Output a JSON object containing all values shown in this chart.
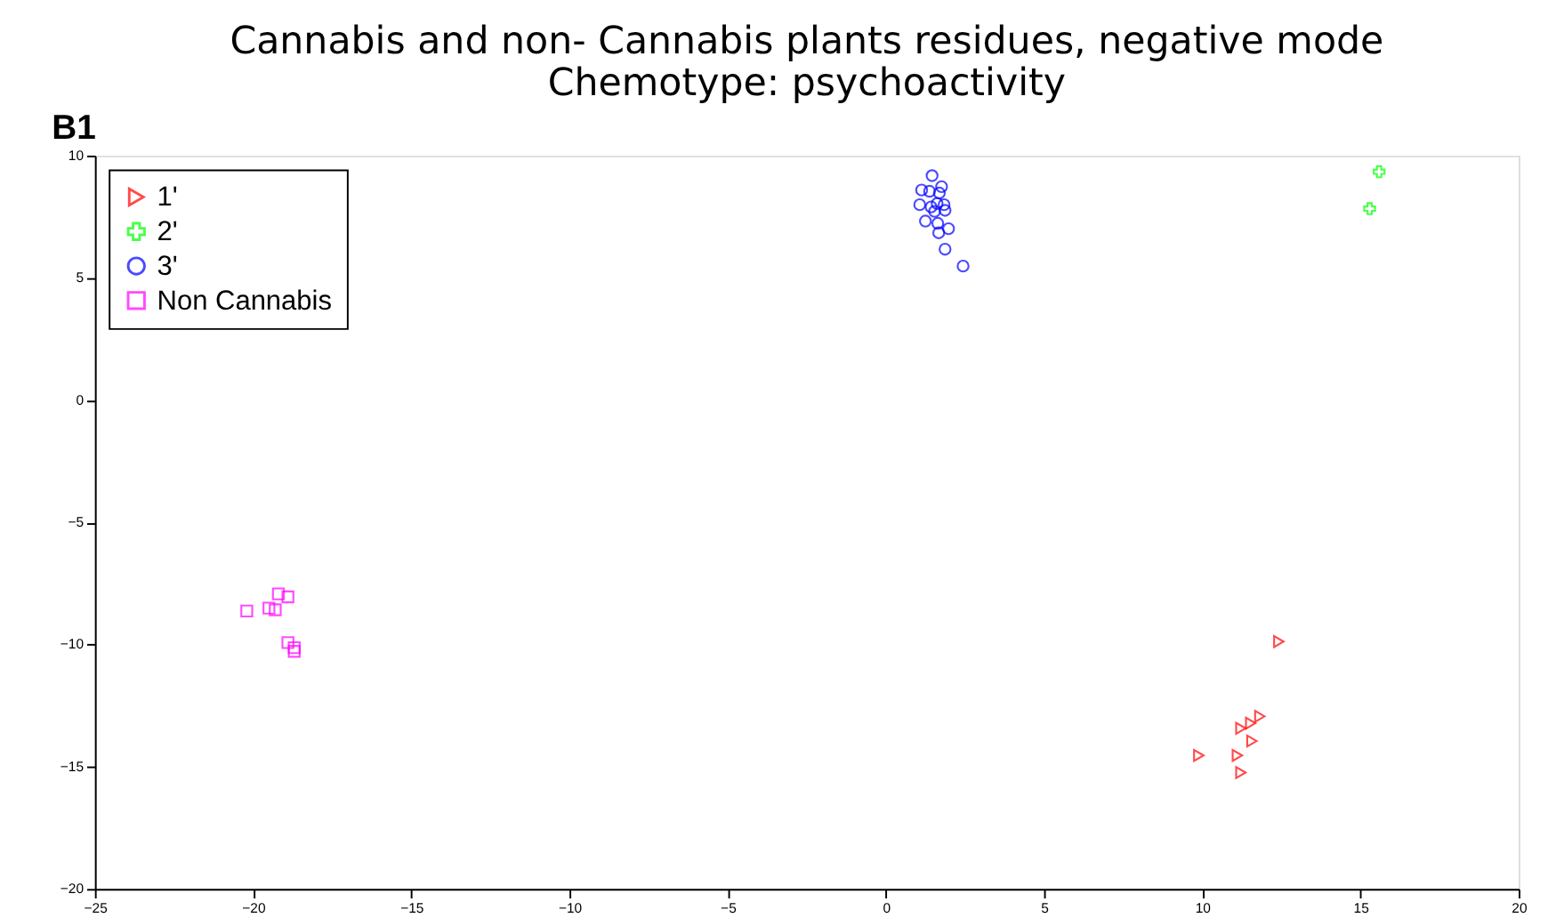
{
  "chart_data": {
    "type": "scatter",
    "title": "Cannabis and non- Cannabis plants residues, negative mode",
    "subtitle": "Chemotype: psychoactivity",
    "annotations": [
      "B1"
    ],
    "series": [
      {
        "name": "1'",
        "color": "#ff0000",
        "marker": "triangle",
        "x": [
          12.42,
          11.82,
          11.53,
          11.22,
          11.57,
          9.89,
          11.11,
          11.22
        ],
        "values": [
          -9.88,
          -12.94,
          -13.22,
          -13.43,
          -13.95,
          -14.54,
          -14.54,
          -15.24
        ]
      },
      {
        "name": "2'",
        "color": "#00ff00",
        "marker": "cross",
        "x": [
          15.59,
          15.29
        ],
        "values": [
          9.34,
          7.83
        ]
      },
      {
        "name": "3'",
        "color": "#0000ff",
        "marker": "circle",
        "x": [
          1.46,
          1.13,
          1.38,
          1.76,
          1.69,
          1.07,
          1.43,
          1.62,
          1.84,
          1.87,
          1.54,
          1.25,
          1.64,
          1.98,
          1.67,
          1.87,
          2.44
        ],
        "values": [
          9.18,
          8.59,
          8.54,
          8.73,
          8.47,
          7.99,
          7.9,
          8.04,
          7.99,
          7.76,
          7.72,
          7.32,
          7.23,
          7.01,
          6.84,
          6.17,
          5.48
        ]
      },
      {
        "name": "Non Cannabis",
        "color": "#ff00ff",
        "marker": "square",
        "x": [
          -19.2,
          -18.9,
          -20.2,
          -19.5,
          -19.3,
          -18.9,
          -18.7,
          -18.7
        ],
        "values": [
          -7.93,
          -8.05,
          -8.63,
          -8.51,
          -8.58,
          -9.92,
          -10.13,
          -10.28
        ]
      }
    ],
    "xlim": [
      -25,
      20
    ],
    "xticks": [
      -25,
      -20,
      -15,
      -10,
      -5,
      0,
      5,
      10,
      15,
      20
    ],
    "ylim": [
      -20,
      10
    ],
    "yticks": [
      -20,
      -15,
      -10,
      -5,
      0,
      5,
      10
    ],
    "grid": false,
    "legend": "top left"
  }
}
